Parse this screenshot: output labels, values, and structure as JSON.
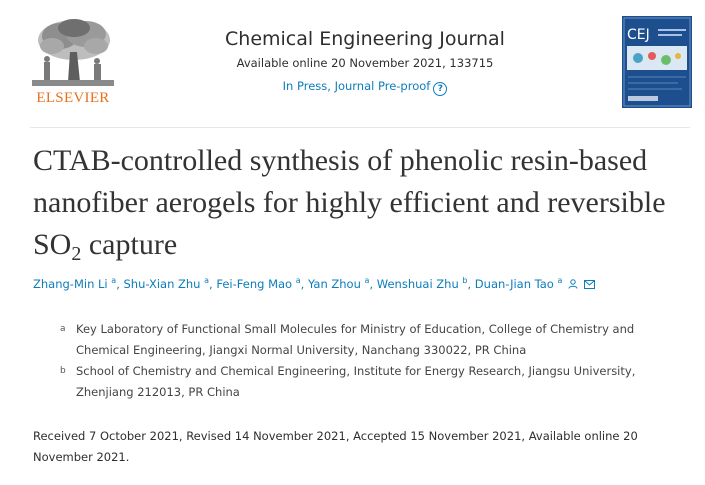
{
  "publisher": {
    "logo_text": "ELSEVIER"
  },
  "journal": {
    "title": "Chemical Engineering Journal",
    "availability": "Available online 20 November 2021, 133715",
    "status": "In Press, Journal Pre-proof",
    "help_glyph": "?",
    "cover_abbrev": "CEJ"
  },
  "article": {
    "title_part1": "CTAB-controlled synthesis of phenolic resin-based nanofiber aerogels for highly efficient and reversible SO",
    "title_sub": "2",
    "title_part2": " capture"
  },
  "authors": [
    {
      "name": "Zhang-Min Li",
      "aff": "a"
    },
    {
      "name": "Shu-Xian Zhu",
      "aff": "a"
    },
    {
      "name": "Fei-Feng Mao",
      "aff": "a"
    },
    {
      "name": "Yan Zhou",
      "aff": "a"
    },
    {
      "name": "Wenshuai Zhu",
      "aff": "b"
    },
    {
      "name": "Duan-Jian Tao",
      "aff": "a"
    }
  ],
  "affiliations": [
    {
      "label": "a",
      "text": "Key Laboratory of Functional Small Molecules for Ministry of Education, College of Chemistry and Chemical Engineering, Jiangxi Normal University, Nanchang 330022, PR China"
    },
    {
      "label": "b",
      "text": "School of Chemistry and Chemical Engineering, Institute for Energy Research, Jiangsu University, Zhenjiang 212013, PR China"
    }
  ],
  "history": "Received 7 October 2021, Revised 14 November 2021, Accepted 15 November 2021, Available online 20 November 2021.",
  "colors": {
    "link": "#0c7dbb",
    "elsevier_orange": "#e9711c",
    "cover_blue": "#1d4f8f"
  },
  "icons": [
    "elsevier-tree-logo",
    "help-icon",
    "person-icon",
    "mail-icon"
  ]
}
